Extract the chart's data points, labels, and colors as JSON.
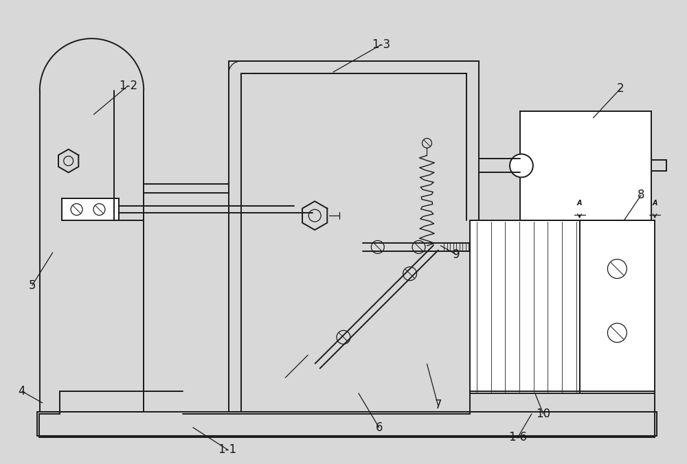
{
  "bg_color": "#d8d8d8",
  "line_color": "#1a1a1a",
  "lw": 1.4,
  "lw_thin": 0.9,
  "fig_width": 10.0,
  "fig_height": 6.76,
  "label_fs": 12
}
